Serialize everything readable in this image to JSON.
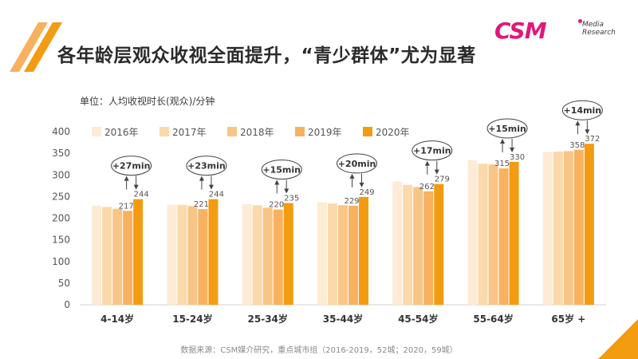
{
  "title": "各年龄层观众收视全面提升，“青少群体”尤为显著",
  "logo": {
    "main": "CSM",
    "sub_line1": "Media",
    "sub_line2": "Research"
  },
  "source": "数据来源：CSM媒介研究，重点城市组（2016-2019，52城；2020，59城）",
  "colors": {
    "accent": "#f39c12",
    "series": [
      "#fdebd5",
      "#fbd9aa",
      "#f8c587",
      "#f7b15f",
      "#f39c12"
    ]
  },
  "chart_data": {
    "type": "bar",
    "unit_label": "单位：人均收视时长(观众)/分钟",
    "categories": [
      "4-14岁",
      "15-24岁",
      "25-34岁",
      "35-44岁",
      "45-54岁",
      "55-64岁",
      "65岁 +"
    ],
    "series": [
      {
        "name": "2016年",
        "values": [
          229,
          231,
          232,
          237,
          285,
          334,
          353
        ]
      },
      {
        "name": "2017年",
        "values": [
          226,
          231,
          230,
          234,
          277,
          326,
          354
        ]
      },
      {
        "name": "2018年",
        "values": [
          222,
          228,
          224,
          230,
          272,
          324,
          355
        ]
      },
      {
        "name": "2019年",
        "values": [
          217,
          221,
          220,
          229,
          262,
          315,
          358
        ]
      },
      {
        "name": "2020年",
        "values": [
          244,
          244,
          235,
          249,
          279,
          330,
          372
        ]
      }
    ],
    "labeled_series": [
      "2019年",
      "2020年"
    ],
    "increase_labels": [
      "+27min",
      "+23min",
      "+15min",
      "+20min",
      "+17min",
      "+15min",
      "+14min"
    ],
    "ylim": [
      0,
      400
    ],
    "yticks": [
      0,
      50,
      100,
      150,
      200,
      250,
      300,
      350,
      400
    ],
    "grid": false,
    "legend_position": "top-left"
  }
}
